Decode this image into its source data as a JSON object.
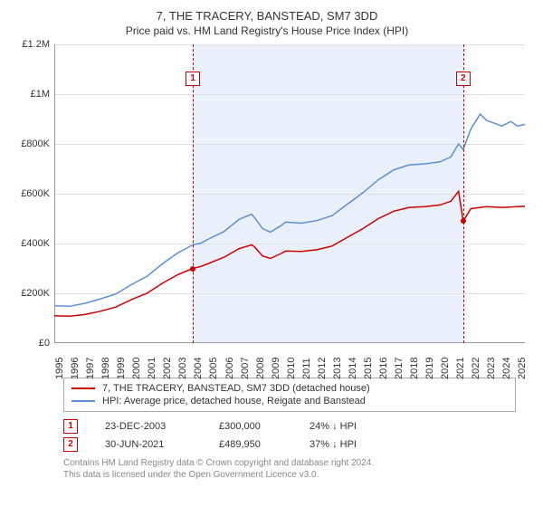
{
  "title": "7, THE TRACERY, BANSTEAD, SM7 3DD",
  "subtitle": "Price paid vs. HM Land Registry's House Price Index (HPI)",
  "chart": {
    "type": "line",
    "ylim": [
      0,
      1200000
    ],
    "y_ticks": [
      0,
      200000,
      400000,
      600000,
      800000,
      1000000,
      1200000
    ],
    "y_labels": [
      "£0",
      "£200K",
      "£400K",
      "£600K",
      "£800K",
      "£1M",
      "£1.2M"
    ],
    "x_years": [
      1995,
      1996,
      1997,
      1998,
      1999,
      2000,
      2001,
      2002,
      2003,
      2004,
      2005,
      2006,
      2007,
      2008,
      2009,
      2010,
      2011,
      2012,
      2013,
      2014,
      2015,
      2016,
      2017,
      2018,
      2019,
      2020,
      2021,
      2022,
      2023,
      2024,
      2025
    ],
    "xlim": [
      1995,
      2025.5
    ],
    "shade_from": 2003.98,
    "shade_to": 2021.5,
    "shade_color": "#eaf0f9",
    "grid_color": "#e0e0e0",
    "background_color": "#ffffff",
    "axis_color": "#999999",
    "series": [
      {
        "name": "property",
        "color": "#cc0000",
        "width": 1.5,
        "data": [
          [
            1995,
            110000
          ],
          [
            1996,
            108000
          ],
          [
            1997,
            115000
          ],
          [
            1998,
            128000
          ],
          [
            1999,
            145000
          ],
          [
            2000,
            175000
          ],
          [
            2001,
            200000
          ],
          [
            2002,
            240000
          ],
          [
            2003,
            275000
          ],
          [
            2003.98,
            300000
          ],
          [
            2004.5,
            308000
          ],
          [
            2005,
            320000
          ],
          [
            2006,
            345000
          ],
          [
            2007,
            380000
          ],
          [
            2007.8,
            395000
          ],
          [
            2008,
            385000
          ],
          [
            2008.5,
            350000
          ],
          [
            2009,
            340000
          ],
          [
            2009.7,
            360000
          ],
          [
            2010,
            370000
          ],
          [
            2011,
            368000
          ],
          [
            2012,
            375000
          ],
          [
            2013,
            390000
          ],
          [
            2014,
            425000
          ],
          [
            2015,
            460000
          ],
          [
            2016,
            500000
          ],
          [
            2017,
            530000
          ],
          [
            2018,
            545000
          ],
          [
            2019,
            548000
          ],
          [
            2020,
            555000
          ],
          [
            2020.7,
            570000
          ],
          [
            2021.2,
            610000
          ],
          [
            2021.5,
            489950
          ],
          [
            2022,
            540000
          ],
          [
            2023,
            548000
          ],
          [
            2024,
            545000
          ],
          [
            2025,
            548000
          ],
          [
            2025.5,
            550000
          ]
        ]
      },
      {
        "name": "hpi",
        "color": "#5b8fd6",
        "width": 1.5,
        "data": [
          [
            1995,
            150000
          ],
          [
            1996,
            148000
          ],
          [
            1997,
            160000
          ],
          [
            1998,
            178000
          ],
          [
            1999,
            198000
          ],
          [
            2000,
            235000
          ],
          [
            2001,
            268000
          ],
          [
            2002,
            318000
          ],
          [
            2003,
            362000
          ],
          [
            2003.98,
            395000
          ],
          [
            2004.5,
            402000
          ],
          [
            2005,
            418000
          ],
          [
            2006,
            448000
          ],
          [
            2007,
            498000
          ],
          [
            2007.8,
            518000
          ],
          [
            2008,
            502000
          ],
          [
            2008.5,
            460000
          ],
          [
            2009,
            446000
          ],
          [
            2009.7,
            472000
          ],
          [
            2010,
            486000
          ],
          [
            2011,
            482000
          ],
          [
            2012,
            492000
          ],
          [
            2013,
            512000
          ],
          [
            2014,
            558000
          ],
          [
            2015,
            604000
          ],
          [
            2016,
            656000
          ],
          [
            2017,
            696000
          ],
          [
            2018,
            716000
          ],
          [
            2019,
            720000
          ],
          [
            2020,
            728000
          ],
          [
            2020.7,
            748000
          ],
          [
            2021.2,
            800000
          ],
          [
            2021.5,
            778000
          ],
          [
            2022,
            860000
          ],
          [
            2022.6,
            920000
          ],
          [
            2023,
            895000
          ],
          [
            2024,
            872000
          ],
          [
            2024.6,
            890000
          ],
          [
            2025,
            872000
          ],
          [
            2025.5,
            878000
          ]
        ]
      }
    ],
    "markers": [
      {
        "n": "1",
        "x": 2003.98,
        "y": 300000,
        "color": "#cc0000"
      },
      {
        "n": "2",
        "x": 2021.5,
        "y": 489950,
        "color": "#cc0000"
      }
    ]
  },
  "legend": [
    {
      "color": "#cc0000",
      "label": "7, THE TRACERY, BANSTEAD, SM7 3DD (detached house)"
    },
    {
      "color": "#5b8fd6",
      "label": "HPI: Average price, detached house, Reigate and Banstead"
    }
  ],
  "transactions": [
    {
      "n": "1",
      "color": "#cc0000",
      "date": "23-DEC-2003",
      "price": "£300,000",
      "diff": "24% ↓ HPI"
    },
    {
      "n": "2",
      "color": "#cc0000",
      "date": "30-JUN-2021",
      "price": "£489,950",
      "diff": "37% ↓ HPI"
    }
  ],
  "footer1": "Contains HM Land Registry data © Crown copyright and database right 2024.",
  "footer2": "This data is licensed under the Open Government Licence v3.0."
}
